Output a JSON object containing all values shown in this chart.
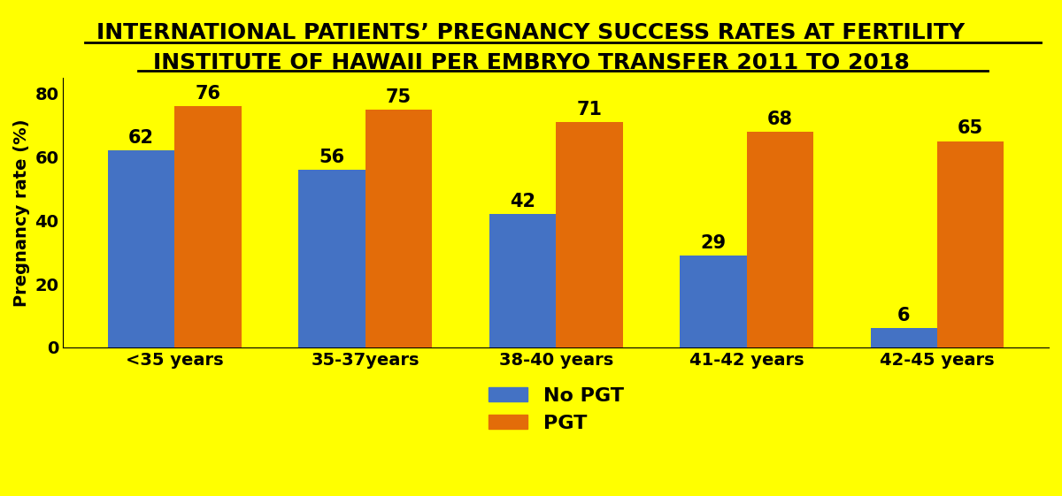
{
  "title_line1": "INTERNATIONAL PATIENTS’ PREGNANCY SUCCESS RATES AT FERTILITY",
  "title_line2": "INSTITUTE OF HAWAII PER EMBRYO TRANSFER 2011 TO 2018",
  "categories": [
    "<35 years",
    "35-37years",
    "38-40 years",
    "41-42 years",
    "42-45 years"
  ],
  "no_pgt_values": [
    62,
    56,
    42,
    29,
    6
  ],
  "pgt_values": [
    76,
    75,
    71,
    68,
    65
  ],
  "no_pgt_color": "#4472C4",
  "pgt_color": "#E36C09",
  "background_color": "#FFFF00",
  "ylabel": "Pregnancy rate (%)",
  "ylim": [
    0,
    85
  ],
  "yticks": [
    0,
    20,
    40,
    60,
    80
  ],
  "legend_no_pgt": "No PGT",
  "legend_pgt": "PGT",
  "bar_width": 0.35,
  "label_fontsize": 16,
  "tick_fontsize": 14,
  "title_fontsize": 18,
  "ylabel_fontsize": 14,
  "value_label_fontsize": 15
}
